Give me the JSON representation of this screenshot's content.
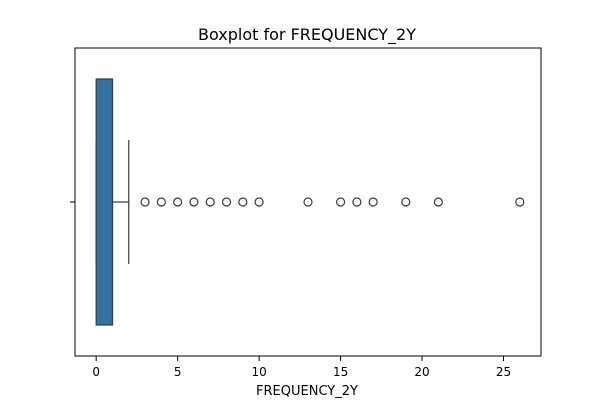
{
  "chart_data": {
    "type": "box",
    "title": "Boxplot for FREQUENCY_2Y",
    "xlabel": "FREQUENCY_2Y",
    "ylabel": "",
    "orientation": "horizontal",
    "xlim": [
      -1.3,
      27.3
    ],
    "xticks": [
      0,
      5,
      10,
      15,
      20,
      25
    ],
    "grid": false,
    "box": {
      "min_whisker": 0,
      "q1": 0,
      "median": 1,
      "q3": 1,
      "max_whisker": 2,
      "fill": "#3274a1",
      "edge": "#3a3a3a"
    },
    "outliers": [
      3,
      4,
      5,
      6,
      7,
      8,
      9,
      10,
      13,
      15,
      16,
      17,
      19,
      21,
      26
    ]
  }
}
